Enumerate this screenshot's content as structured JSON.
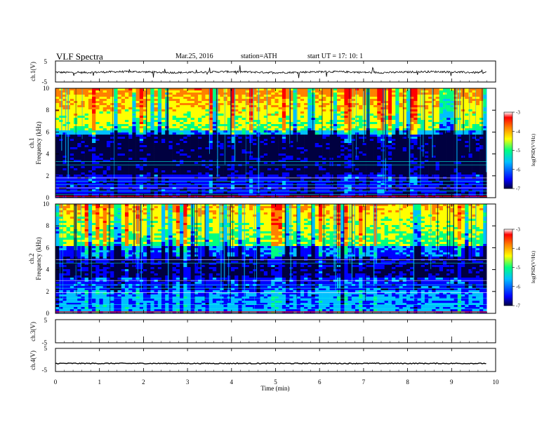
{
  "header": {
    "title": "VLF  Spectra",
    "date": "Mar.25, 2016",
    "station": "station=ATH",
    "start_ut": "start  UT  =    17: 10: 1"
  },
  "colors": {
    "colormap": [
      "#000040",
      "#0000ff",
      "#00c0ff",
      "#00ff80",
      "#ffff00",
      "#ff8000",
      "#ff0000",
      "#ffffff"
    ],
    "trace": "#000000",
    "axis": "#000000"
  },
  "chart_data": [
    {
      "type": "line",
      "name": "ch1-waveform",
      "ylabel": "ch.1(V)",
      "ylim": [
        -5,
        5
      ],
      "yticks": [
        "5",
        "-5"
      ],
      "baseline": -0.3
    },
    {
      "type": "heatmap",
      "name": "ch1-spectrogram",
      "ylabel": "ch.1\nFrequency (kHz)",
      "ylim": [
        0,
        10
      ],
      "yticks": [
        "0",
        "2",
        "4",
        "6",
        "8",
        "10"
      ],
      "colorbar": {
        "label": "log(PSD(V²/Hz)",
        "range": [
          -7,
          -3
        ],
        "ticks": [
          "-3",
          "-4",
          "-5",
          "-6",
          "-7"
        ]
      }
    },
    {
      "type": "heatmap",
      "name": "ch2-spectrogram",
      "ylabel": "ch.2\nFrequency (kHz)",
      "ylim": [
        0,
        10
      ],
      "yticks": [
        "0",
        "2",
        "4",
        "6",
        "8",
        "10"
      ],
      "colorbar": {
        "label": "log(PSD(V²/Hz)",
        "range": [
          -7,
          -3
        ],
        "ticks": [
          "-3",
          "-4",
          "-5",
          "-6",
          "-7"
        ]
      }
    },
    {
      "type": "line",
      "name": "ch3-waveform",
      "ylabel": "ch.3(V)",
      "ylim": [
        -5,
        5
      ],
      "yticks": [
        "5",
        "-5"
      ]
    },
    {
      "type": "line",
      "name": "ch4-waveform",
      "ylabel": "ch.4(V)",
      "ylim": [
        -5,
        5
      ],
      "yticks": [
        "5",
        "-5"
      ],
      "baseline": -1.5
    }
  ],
  "x_axis": {
    "xlabel": "Time  (min)",
    "xlim": [
      0,
      10
    ],
    "ticks": [
      "0",
      "1",
      "2",
      "3",
      "4",
      "5",
      "6",
      "7",
      "8",
      "9",
      "10"
    ],
    "data_end": 9.8
  }
}
